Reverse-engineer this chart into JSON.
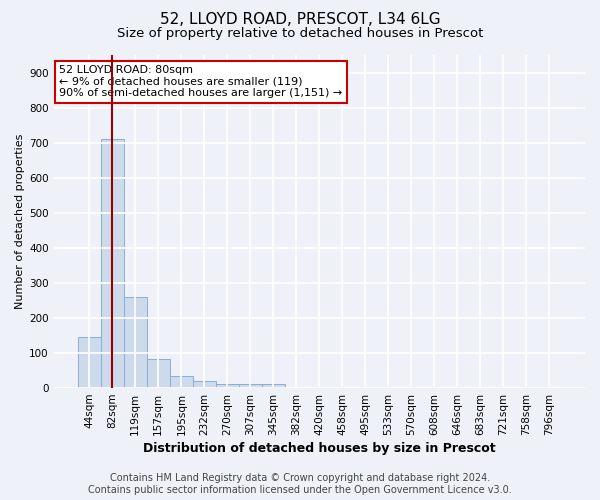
{
  "title1": "52, LLOYD ROAD, PRESCOT, L34 6LG",
  "title2": "Size of property relative to detached houses in Prescot",
  "xlabel": "Distribution of detached houses by size in Prescot",
  "ylabel": "Number of detached properties",
  "categories": [
    "44sqm",
    "82sqm",
    "119sqm",
    "157sqm",
    "195sqm",
    "232sqm",
    "270sqm",
    "307sqm",
    "345sqm",
    "382sqm",
    "420sqm",
    "458sqm",
    "495sqm",
    "533sqm",
    "570sqm",
    "608sqm",
    "646sqm",
    "683sqm",
    "721sqm",
    "758sqm",
    "796sqm"
  ],
  "values": [
    145,
    710,
    260,
    83,
    35,
    20,
    12,
    12,
    12,
    0,
    0,
    0,
    0,
    0,
    0,
    0,
    0,
    0,
    0,
    0,
    0
  ],
  "bar_color": "#ccdaec",
  "bar_edge_color": "#8aafd4",
  "vline_color": "#990000",
  "annotation_text": "52 LLOYD ROAD: 80sqm\n← 9% of detached houses are smaller (119)\n90% of semi-detached houses are larger (1,151) →",
  "annotation_box_color": "#ffffff",
  "annotation_box_edge": "#cc0000",
  "ylim": [
    0,
    950
  ],
  "yticks": [
    0,
    100,
    200,
    300,
    400,
    500,
    600,
    700,
    800,
    900
  ],
  "footer1": "Contains HM Land Registry data © Crown copyright and database right 2024.",
  "footer2": "Contains public sector information licensed under the Open Government Licence v3.0.",
  "bg_color": "#eef2f8",
  "grid_color": "#ffffff",
  "title1_fontsize": 11,
  "title2_fontsize": 9.5,
  "xlabel_fontsize": 9,
  "ylabel_fontsize": 8,
  "tick_fontsize": 7.5,
  "footer_fontsize": 7,
  "vline_x_index": 1
}
